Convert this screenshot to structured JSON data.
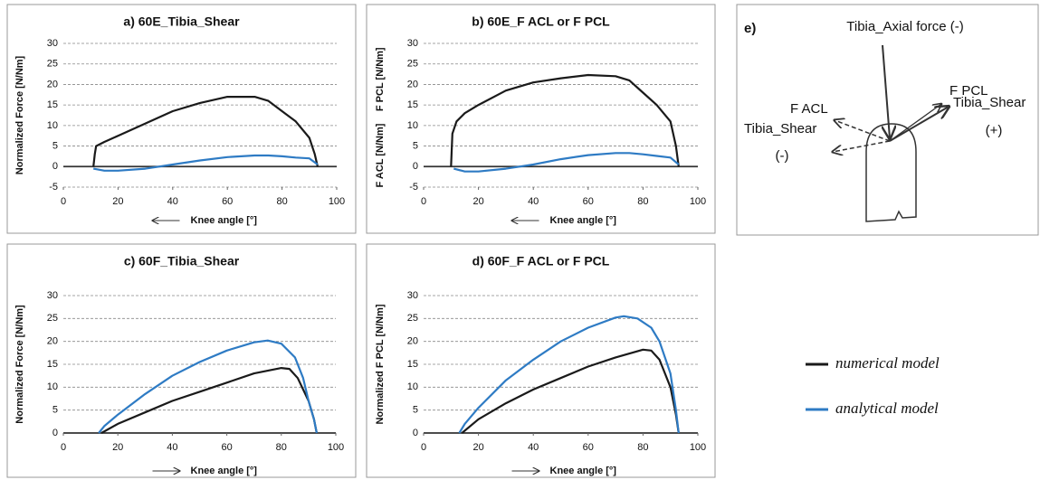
{
  "chart_data": [
    {
      "type": "line",
      "title": "a) 60E_Tibia_Shear",
      "ylabel": "Normalized Force [N/Nm]",
      "xlabel": "Knee angle [°]",
      "xarrow": "left",
      "xlim": [
        0,
        100
      ],
      "xticks": [
        0,
        20,
        40,
        60,
        80,
        100
      ],
      "ylim": [
        -5,
        30
      ],
      "yticks": [
        -5,
        0,
        5,
        10,
        15,
        20,
        25,
        30
      ],
      "grid": true,
      "series": [
        {
          "color": "#1a1a1a",
          "x": [
            11,
            11.5,
            12,
            15,
            20,
            30,
            40,
            50,
            60,
            70,
            75,
            80,
            85,
            90,
            92,
            93
          ],
          "values": [
            0,
            3,
            5,
            6,
            7.5,
            10.5,
            13.5,
            15.5,
            17,
            17,
            16,
            13.5,
            11,
            7,
            3,
            0
          ]
        },
        {
          "color": "#2e7bc4",
          "x": [
            11,
            15,
            20,
            30,
            35,
            40,
            50,
            60,
            70,
            75,
            80,
            85,
            90,
            93
          ],
          "values": [
            -0.5,
            -1,
            -1,
            -0.5,
            0,
            0.5,
            1.5,
            2.3,
            2.7,
            2.7,
            2.5,
            2.2,
            2,
            0.5
          ]
        }
      ]
    },
    {
      "type": "line",
      "title": "b) 60E_F ACL or F PCL",
      "ylabel": [
        "F ACL [N/Nm]",
        "F PCL [N/Nm]"
      ],
      "xlabel": "Knee angle [°]",
      "xarrow": "left",
      "xlim": [
        0,
        100
      ],
      "xticks": [
        0,
        20,
        40,
        60,
        80,
        100
      ],
      "ylim": [
        -5,
        30
      ],
      "yticks": [
        -5,
        0,
        5,
        10,
        15,
        20,
        25,
        30
      ],
      "grid": true,
      "series": [
        {
          "color": "#1a1a1a",
          "x": [
            10,
            10.5,
            12,
            15,
            20,
            30,
            40,
            50,
            60,
            70,
            75,
            80,
            85,
            90,
            92,
            93
          ],
          "values": [
            0,
            8,
            11,
            13,
            15,
            18.5,
            20.5,
            21.5,
            22.3,
            22,
            21,
            18,
            15,
            11,
            5,
            0
          ]
        },
        {
          "color": "#2e7bc4",
          "x": [
            11,
            15,
            20,
            30,
            35,
            40,
            50,
            60,
            70,
            75,
            80,
            85,
            90,
            93
          ],
          "values": [
            -0.5,
            -1.2,
            -1.2,
            -0.5,
            0,
            0.5,
            1.8,
            2.8,
            3.3,
            3.3,
            3,
            2.6,
            2.2,
            0.5
          ]
        }
      ]
    },
    {
      "type": "line",
      "title": "c) 60F_Tibia_Shear",
      "ylabel": "Normalized Force [N/Nm]",
      "xlabel": "Knee angle [°]",
      "xarrow": "right",
      "xlim": [
        0,
        100
      ],
      "xticks": [
        0,
        20,
        40,
        60,
        80,
        100
      ],
      "ylim": [
        0,
        30
      ],
      "yticks": [
        0,
        5,
        10,
        15,
        20,
        25,
        30
      ],
      "grid": true,
      "series": [
        {
          "color": "#1a1a1a",
          "x": [
            14,
            20,
            30,
            40,
            50,
            60,
            70,
            80,
            83,
            86,
            90,
            92,
            93
          ],
          "values": [
            0,
            2,
            4.5,
            7,
            9,
            11,
            13,
            14.2,
            14,
            12,
            7,
            3,
            0
          ]
        },
        {
          "color": "#2e7bc4",
          "x": [
            13,
            15,
            20,
            30,
            40,
            50,
            60,
            70,
            75,
            80,
            85,
            88,
            90,
            92,
            93
          ],
          "values": [
            0,
            1.5,
            4,
            8.5,
            12.5,
            15.5,
            18,
            19.8,
            20.2,
            19.5,
            16.5,
            12,
            7,
            3,
            0
          ]
        }
      ]
    },
    {
      "type": "line",
      "title": "d) 60F_F ACL or F PCL",
      "ylabel": "Normalized F PCL [N/Nm]",
      "xlabel": "Knee angle [°]",
      "xarrow": "right",
      "xlim": [
        0,
        100
      ],
      "xticks": [
        0,
        20,
        40,
        60,
        80,
        100
      ],
      "ylim": [
        0,
        30
      ],
      "yticks": [
        0,
        5,
        10,
        15,
        20,
        25,
        30
      ],
      "grid": true,
      "series": [
        {
          "color": "#1a1a1a",
          "x": [
            14,
            20,
            30,
            40,
            50,
            60,
            70,
            80,
            83,
            86,
            90,
            92,
            93
          ],
          "values": [
            0,
            3,
            6.5,
            9.5,
            12,
            14.5,
            16.5,
            18.2,
            18,
            16,
            10,
            4,
            0
          ]
        },
        {
          "color": "#2e7bc4",
          "x": [
            13,
            15,
            20,
            30,
            40,
            50,
            60,
            70,
            73,
            78,
            83,
            86,
            90,
            92,
            93
          ],
          "values": [
            0,
            2,
            5.5,
            11.5,
            16,
            20,
            23,
            25.2,
            25.5,
            25,
            23,
            20,
            13,
            5,
            0
          ]
        }
      ]
    }
  ],
  "legend": [
    {
      "name": "numerical model",
      "color": "#1a1a1a"
    },
    {
      "name": "analytical model",
      "color": "#2e7bc4"
    }
  ],
  "diagram": {
    "label": "e)",
    "axial": "Tibia_Axial force (-)",
    "fpcl": "F PCL",
    "facl": "F ACL",
    "shear_pos": "Tibia_Shear",
    "shear_pos_sign": "(+)",
    "shear_neg": "Tibia_Shear",
    "shear_neg_sign": "(-)"
  }
}
